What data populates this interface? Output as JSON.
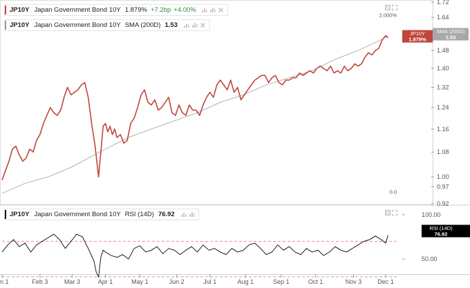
{
  "price_legend": {
    "symbol": "JP10Y",
    "name": "Japan Government Bond 10Y",
    "value": "1.879%",
    "change_bp": "+7.2bp",
    "change_pct": "+4.00%",
    "color": "#c0463b",
    "icons": [
      "bar-chart-icon",
      "settings-icon",
      "close-icon"
    ]
  },
  "sma_legend": {
    "symbol": "JP10Y",
    "name": "Japan Government Bond 10Y",
    "indicator": "SMA (200D)",
    "value": "1.53",
    "color": "#9a9a9a",
    "icons": [
      "bar-chart-icon",
      "settings-icon",
      "close-icon"
    ]
  },
  "rsi_legend": {
    "symbol": "JP10Y",
    "name": "Japan Government Bond 10Y",
    "indicator": "RSI (14D)",
    "value": "76.92",
    "color": "#000000",
    "icons": [
      "bar-chart-icon",
      "settings-icon"
    ]
  },
  "price_tags": {
    "price": {
      "label": "JP10Y",
      "value": "1.879%",
      "color": "#c0463b"
    },
    "sma": {
      "label": "SMA (200D)",
      "value": "1.53",
      "color": "#a8a8a8"
    }
  },
  "rsi_tag": {
    "label": "RSI (14D)",
    "value": "76.92",
    "color": "#000000"
  },
  "chart_data": [
    {
      "type": "line",
      "pane": "price",
      "y_scale": "log",
      "ylim": [
        0.92,
        1.72
      ],
      "y_ticks": [
        "1.72",
        "1.64",
        "1.56",
        "1.48",
        "1.40",
        "1.32",
        "1.24",
        "1.16",
        "1.08",
        "1.00",
        "0.97",
        "0.92"
      ],
      "y_tick_values": [
        1.72,
        1.64,
        1.56,
        1.48,
        1.4,
        1.32,
        1.24,
        1.16,
        1.08,
        1.0,
        0.97,
        0.92
      ],
      "pct_ticks": [
        {
          "label": "2.000%",
          "value": 1.654
        },
        {
          "label": "0.0",
          "value": 0.955
        }
      ],
      "x_ticks": [
        "n 1",
        "Feb 3",
        "Mar 3",
        "Apr 1",
        "May 1",
        "Jun 2",
        "Jul 1",
        "Aug 1",
        "Sep 1",
        "Oct 1",
        "Nov 3",
        "Dec 1"
      ],
      "x_tick_days": [
        0,
        33,
        61,
        90,
        120,
        152,
        181,
        212,
        243,
        273,
        306,
        334
      ],
      "xlim": [
        0,
        340
      ],
      "series": [
        {
          "name": "JP10Y",
          "color": "#c0463b",
          "x": [
            0,
            3,
            6,
            9,
            12,
            15,
            18,
            21,
            24,
            27,
            30,
            33,
            36,
            39,
            42,
            45,
            48,
            51,
            54,
            57,
            60,
            63,
            66,
            69,
            72,
            75,
            78,
            81,
            84,
            86,
            88,
            90,
            92,
            94,
            96,
            98,
            100,
            103,
            106,
            109,
            112,
            115,
            118,
            121,
            124,
            127,
            130,
            133,
            136,
            139,
            142,
            145,
            148,
            151,
            154,
            157,
            160,
            163,
            166,
            169,
            172,
            175,
            178,
            181,
            184,
            187,
            190,
            193,
            196,
            199,
            202,
            205,
            208,
            211,
            214,
            217,
            220,
            223,
            226,
            229,
            232,
            235,
            238,
            241,
            244,
            247,
            250,
            253,
            256,
            259,
            262,
            265,
            268,
            271,
            274,
            277,
            280,
            283,
            286,
            289,
            292,
            295,
            298,
            301,
            304,
            307,
            310,
            313,
            316,
            319,
            322,
            325,
            328,
            331,
            334,
            336
          ],
          "values": [
            0.99,
            1.02,
            1.05,
            1.09,
            1.1,
            1.07,
            1.05,
            1.06,
            1.09,
            1.08,
            1.12,
            1.14,
            1.18,
            1.21,
            1.24,
            1.22,
            1.21,
            1.23,
            1.28,
            1.32,
            1.29,
            1.3,
            1.31,
            1.33,
            1.34,
            1.28,
            1.18,
            1.1,
            1.0,
            1.08,
            1.17,
            1.18,
            1.15,
            1.17,
            1.14,
            1.16,
            1.13,
            1.14,
            1.11,
            1.12,
            1.18,
            1.2,
            1.24,
            1.29,
            1.31,
            1.26,
            1.25,
            1.27,
            1.23,
            1.24,
            1.26,
            1.28,
            1.22,
            1.21,
            1.25,
            1.22,
            1.21,
            1.25,
            1.23,
            1.23,
            1.21,
            1.25,
            1.28,
            1.3,
            1.28,
            1.33,
            1.35,
            1.33,
            1.31,
            1.35,
            1.3,
            1.32,
            1.27,
            1.29,
            1.31,
            1.33,
            1.35,
            1.36,
            1.37,
            1.37,
            1.34,
            1.36,
            1.37,
            1.34,
            1.33,
            1.35,
            1.35,
            1.36,
            1.36,
            1.38,
            1.37,
            1.38,
            1.39,
            1.38,
            1.4,
            1.41,
            1.4,
            1.39,
            1.41,
            1.38,
            1.39,
            1.38,
            1.41,
            1.39,
            1.4,
            1.42,
            1.41,
            1.42,
            1.45,
            1.47,
            1.46,
            1.48,
            1.49,
            1.53,
            1.55,
            1.54
          ]
        },
        {
          "name": "SMA (200D)",
          "color": "#a8a8a8",
          "x": [
            0,
            20,
            40,
            60,
            80,
            95,
            110,
            130,
            150,
            170,
            190,
            210,
            230,
            250,
            270,
            290,
            310,
            330,
            336
          ],
          "values": [
            0.95,
            0.98,
            1.0,
            1.03,
            1.07,
            1.1,
            1.13,
            1.16,
            1.19,
            1.22,
            1.26,
            1.29,
            1.33,
            1.36,
            1.39,
            1.44,
            1.48,
            1.53,
            1.55
          ]
        }
      ]
    },
    {
      "type": "line",
      "pane": "rsi",
      "ylim": [
        33,
        110
      ],
      "y_ticks": [
        "100.00",
        "50.00"
      ],
      "y_tick_values": [
        100,
        50
      ],
      "levels": [
        70,
        30
      ],
      "x_ticks": [
        "n 1",
        "Feb 3",
        "Mar 3",
        "Apr 1",
        "May 1",
        "Jun 2",
        "Jul 1",
        "Aug 1",
        "Sep 1",
        "Oct 1",
        "Nov 3",
        "Dec 1"
      ],
      "xlim": [
        0,
        340
      ],
      "series": [
        {
          "name": "RSI (14D)",
          "color": "#000000",
          "x": [
            0,
            5,
            10,
            15,
            20,
            25,
            30,
            35,
            40,
            45,
            50,
            55,
            60,
            65,
            70,
            75,
            80,
            82,
            84,
            86,
            88,
            90,
            95,
            100,
            105,
            110,
            115,
            120,
            125,
            130,
            135,
            140,
            145,
            150,
            155,
            160,
            165,
            170,
            175,
            180,
            185,
            190,
            195,
            200,
            205,
            210,
            215,
            220,
            225,
            230,
            235,
            240,
            245,
            250,
            255,
            260,
            265,
            270,
            275,
            280,
            285,
            290,
            295,
            300,
            305,
            310,
            315,
            320,
            325,
            330,
            334,
            336
          ],
          "values": [
            58,
            66,
            72,
            64,
            68,
            58,
            66,
            70,
            74,
            78,
            72,
            62,
            70,
            78,
            75,
            62,
            48,
            35,
            30,
            52,
            60,
            58,
            54,
            52,
            55,
            50,
            62,
            65,
            58,
            60,
            64,
            56,
            62,
            60,
            55,
            60,
            64,
            58,
            66,
            60,
            62,
            58,
            55,
            62,
            58,
            60,
            66,
            68,
            62,
            55,
            58,
            66,
            60,
            64,
            58,
            55,
            62,
            58,
            60,
            54,
            58,
            64,
            60,
            58,
            62,
            66,
            70,
            72,
            76,
            72,
            68,
            76.92
          ]
        }
      ]
    }
  ]
}
